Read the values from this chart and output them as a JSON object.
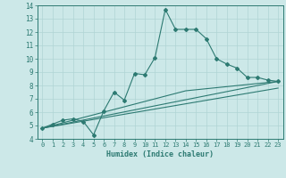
{
  "title": "",
  "xlabel": "Humidex (Indice chaleur)",
  "xlim": [
    -0.5,
    23.5
  ],
  "ylim": [
    4,
    14
  ],
  "xticks": [
    0,
    1,
    2,
    3,
    4,
    5,
    6,
    7,
    8,
    9,
    10,
    11,
    12,
    13,
    14,
    15,
    16,
    17,
    18,
    19,
    20,
    21,
    22,
    23
  ],
  "yticks": [
    4,
    5,
    6,
    7,
    8,
    9,
    10,
    11,
    12,
    13,
    14
  ],
  "bg_color": "#cce8e8",
  "grid_color": "#b0d4d4",
  "line_color": "#2d7a72",
  "series1_x": [
    0,
    1,
    2,
    3,
    4,
    5,
    6,
    7,
    8,
    9,
    10,
    11,
    12,
    13,
    14,
    15,
    16,
    17,
    18,
    19,
    20,
    21,
    22,
    23
  ],
  "series1_y": [
    4.8,
    5.1,
    5.4,
    5.5,
    5.3,
    4.3,
    6.1,
    7.5,
    6.9,
    8.9,
    8.8,
    10.1,
    13.7,
    12.2,
    12.2,
    12.2,
    11.5,
    10.0,
    9.6,
    9.3,
    8.6,
    8.6,
    8.4,
    8.3
  ],
  "series2_x": [
    0,
    23
  ],
  "series2_y": [
    4.8,
    8.3
  ],
  "series3_x": [
    0,
    23
  ],
  "series3_y": [
    4.8,
    7.8
  ],
  "series4_x": [
    0,
    14,
    23
  ],
  "series4_y": [
    4.8,
    7.6,
    8.3
  ]
}
